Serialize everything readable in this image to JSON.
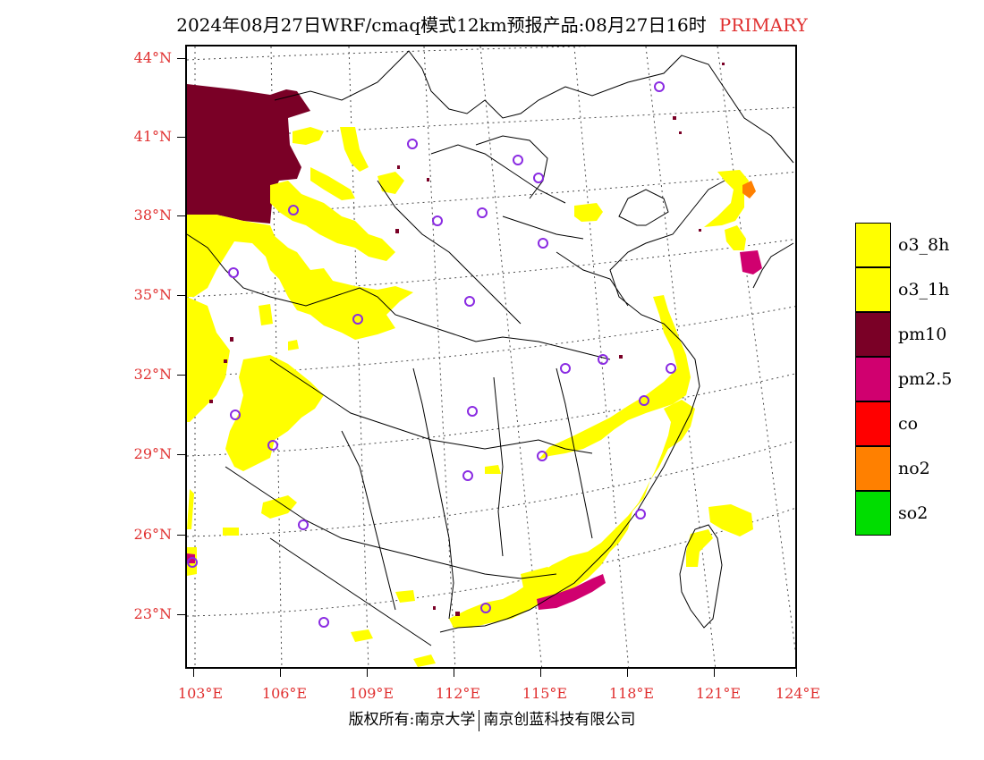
{
  "title": {
    "text": "2024年08月27日WRF/cmaq模式12km预报产品:08月27日16时",
    "tag": "PRIMARY"
  },
  "lat_labels": [
    "44°N",
    "41°N",
    "38°N",
    "35°N",
    "32°N",
    "29°N",
    "26°N",
    "23°N"
  ],
  "lon_labels": [
    "103°E",
    "106°E",
    "109°E",
    "112°E",
    "115°E",
    "118°E",
    "121°E",
    "124°E"
  ],
  "legend": [
    {
      "label": "o3_8h",
      "color": "#ffff00"
    },
    {
      "label": "o3_1h",
      "color": "#ffff00"
    },
    {
      "label": "pm10",
      "color": "#7a0026"
    },
    {
      "label": "pm2.5",
      "color": "#d0006f"
    },
    {
      "label": "co",
      "color": "#ff0000"
    },
    {
      "label": "no2",
      "color": "#ff8000"
    },
    {
      "label": "so2",
      "color": "#00dd00"
    }
  ],
  "footer": {
    "left": "版权所有:南京大学",
    "right": "南京创蓝科技有限公司"
  },
  "colors": {
    "axis_label": "#e03030",
    "station_marker": "#8a2be2"
  }
}
